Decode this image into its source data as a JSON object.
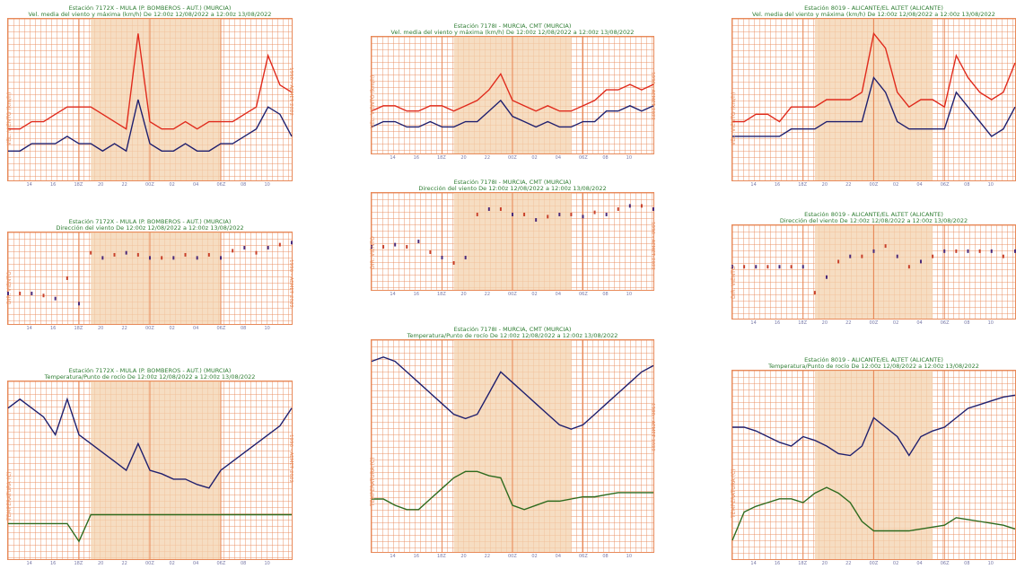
{
  "colors": {
    "grid": "#e88a5a",
    "shade": "#f3d1ae",
    "title_green": "#2e7d32",
    "mean_navy": "#1f1f6e",
    "gust_red": "#e02a1c",
    "dew_green": "#2e6b1e",
    "dir_purple": "#4a2a7a",
    "dir_red": "#c8402a"
  },
  "stations": [
    {
      "wind_title": [
        "Estación 7172X - MULA (P. BOMBEROS - AUT.) (MURCIA)",
        "Vel. media del viento y máxima (km/h)  De 12:00z 12/08/2022 a 12:00z 13/08/2022"
      ],
      "wind_ylabel": "VEL. VIENTO (km/h)",
      "wind_right": "1996 - AEMET 2022",
      "dir_title": [
        "Estación 7172X - MULA (P. BOMBEROS - AUT.) (MURCIA)",
        "Dirección del viento  De 12:00z 12/08/2022 a 12:00z 13/08/2022"
      ],
      "dir_ylabel": "DIR. VIENTO",
      "dir_right": "1996 - AEMET 2022",
      "temp_title": [
        "Estación 7172X - MULA (P. BOMBEROS - AUT.) (MURCIA)",
        "Temperatura/Punto de rocío  De 12:00z 12/08/2022 a 12:00z 13/08/2022"
      ],
      "temp_ylabel": "TEMPERATURA (C)",
      "temp_right": "1996 - AEMET 2022",
      "xticks": [
        "14",
        "16",
        "18Z",
        "20",
        "22",
        "00Z",
        "02",
        "04",
        "06Z",
        "08",
        "10"
      ]
    },
    {
      "wind_title": [
        "Estación 7178I - MURCIA, CMT (MURCIA)",
        "Vel. media del viento y máxima (km/h)  De 12:00z 12/08/2022 a 12:00z 13/08/2022"
      ],
      "wind_ylabel": "VEL. VIENTO (km/h)",
      "wind_right": "1996 - AEMET 2022",
      "dir_title": [
        "Estación 7178I - MURCIA, CMT (MURCIA)",
        "Dirección del viento  De 12:00z 12/08/2022 a 12:00z 13/08/2022"
      ],
      "dir_ylabel": "DIR. VIENTO",
      "dir_right": "1996 - AEMET 2022",
      "temp_title": [
        "Estación 7178I - MURCIA, CMT (MURCIA)",
        "Temperatura/Punto de rocío  De 12:00z 12/08/2022 a 12:00z 13/08/2022"
      ],
      "temp_ylabel": "TEMPERATURA (C)",
      "temp_right": "1996 - AEMET 2022",
      "xticks": [
        "14",
        "16",
        "18Z",
        "20",
        "22",
        "00Z",
        "02",
        "04",
        "06Z",
        "08",
        "10"
      ]
    },
    {
      "wind_title": [
        "Estación 8019 - ALICANTE/EL ALTET (ALICANTE)",
        "Vel. media del viento y máxima (km/h)  De 12:00z 12/08/2022 a 12:00z 13/08/2022"
      ],
      "wind_ylabel": "VEL. VIENTO (km/h)",
      "wind_right": "",
      "dir_title": [
        "Estación 8019 - ALICANTE/EL ALTET (ALICANTE)",
        "Dirección del viento  De 12:00z 12/08/2022 a 12:00z 13/08/2022"
      ],
      "dir_ylabel": "DIR. VIENTO",
      "dir_right": "",
      "temp_title": [
        "Estación 8019 - ALICANTE/EL ALTET (ALICANTE)",
        "Temperatura/Punto de rocío  De 12:00z 12/08/2022 a 12:00z 13/08/2022"
      ],
      "temp_ylabel": "TEMPERATURA (C)",
      "temp_right": "",
      "xticks": [
        "14",
        "16",
        "18Z",
        "20",
        "22",
        "00Z",
        "02",
        "04",
        "06Z",
        "08",
        "10"
      ]
    }
  ],
  "chart_data": [
    {
      "type": "line",
      "station": "7172X",
      "variable": "wind",
      "x_hours": [
        0,
        1,
        2,
        3,
        4,
        5,
        6,
        7,
        8,
        9,
        10,
        11,
        12,
        13,
        14,
        15,
        16,
        17,
        18,
        19,
        20,
        21,
        22,
        23,
        24
      ],
      "shade_hours": [
        7,
        18
      ],
      "series": [
        {
          "role": "gust",
          "values": [
            3.5,
            3.5,
            4,
            4,
            4.5,
            5,
            5,
            5,
            4.5,
            4,
            3.5,
            10,
            4,
            3.5,
            3.5,
            4,
            3.5,
            4,
            4,
            4,
            4.5,
            5,
            8.5,
            6.5,
            6
          ]
        },
        {
          "role": "mean",
          "values": [
            2,
            2,
            2.5,
            2.5,
            2.5,
            3,
            2.5,
            2.5,
            2,
            2.5,
            2,
            5.5,
            2.5,
            2,
            2,
            2.5,
            2,
            2,
            2.5,
            2.5,
            3,
            3.5,
            5,
            4.5,
            3
          ]
        }
      ]
    },
    {
      "type": "scatter",
      "station": "7172X",
      "variable": "direction",
      "x_hours": [
        0,
        1,
        2,
        3,
        4,
        5,
        6,
        7,
        8,
        9,
        10,
        11,
        12,
        13,
        14,
        15,
        16,
        17,
        18,
        19,
        20,
        21,
        22,
        23,
        24
      ],
      "shade_hours": [
        7,
        18
      ],
      "series": [
        {
          "role": "direction",
          "values": [
            3,
            3,
            3,
            2.8,
            2.5,
            4.5,
            2,
            7,
            6.5,
            6.8,
            7,
            6.8,
            6.5,
            6.5,
            6.5,
            6.8,
            6.5,
            6.8,
            6.5,
            7.2,
            7.5,
            7,
            7.5,
            7.8,
            8
          ]
        }
      ]
    },
    {
      "type": "line",
      "station": "7172X",
      "variable": "temperature",
      "x_hours": [
        0,
        1,
        2,
        3,
        4,
        5,
        6,
        7,
        8,
        9,
        10,
        11,
        12,
        13,
        14,
        15,
        16,
        17,
        18,
        19,
        20,
        21,
        22,
        23,
        24
      ],
      "shade_hours": [
        7,
        18
      ],
      "series": [
        {
          "role": "temperature",
          "values": [
            8.5,
            9,
            8.5,
            8,
            7,
            9,
            7,
            6.5,
            6,
            5.5,
            5,
            6.5,
            5,
            4.8,
            4.5,
            4.5,
            4.2,
            4,
            5,
            5.5,
            6,
            6.5,
            7,
            7.5,
            8.5
          ]
        },
        {
          "role": "dewpoint",
          "values": [
            2,
            2,
            2,
            2,
            2,
            2,
            1,
            2.5,
            2.5,
            2.5,
            2.5,
            2.5,
            2.5,
            2.5,
            2.5,
            2.5,
            2.5,
            2.5,
            2.5,
            2.5,
            2.5,
            2.5,
            2.5,
            2.5,
            2.5
          ]
        }
      ]
    },
    {
      "type": "line",
      "station": "7178I",
      "variable": "wind",
      "x_hours": [
        0,
        1,
        2,
        3,
        4,
        5,
        6,
        7,
        8,
        9,
        10,
        11,
        12,
        13,
        14,
        15,
        16,
        17,
        18,
        19,
        20,
        21,
        22,
        23,
        24
      ],
      "shade_hours": [
        7,
        17
      ],
      "series": [
        {
          "role": "gust",
          "values": [
            4,
            4.5,
            4.5,
            4,
            4,
            4.5,
            4.5,
            4,
            4.5,
            5,
            6,
            7.5,
            5,
            4.5,
            4,
            4.5,
            4,
            4,
            4.5,
            5,
            6,
            6,
            6.5,
            6,
            6.5
          ]
        },
        {
          "role": "mean",
          "values": [
            2.5,
            3,
            3,
            2.5,
            2.5,
            3,
            2.5,
            2.5,
            3,
            3,
            4,
            5,
            3.5,
            3,
            2.5,
            3,
            2.5,
            2.5,
            3,
            3,
            4,
            4,
            4.5,
            4,
            4.5
          ]
        }
      ]
    },
    {
      "type": "scatter",
      "station": "7178I",
      "variable": "direction",
      "x_hours": [
        0,
        1,
        2,
        3,
        4,
        5,
        6,
        7,
        8,
        9,
        10,
        11,
        12,
        13,
        14,
        15,
        16,
        17,
        18,
        19,
        20,
        21,
        22,
        23,
        24
      ],
      "shade_hours": [
        7,
        17
      ],
      "series": [
        {
          "role": "direction",
          "values": [
            4,
            4,
            4.2,
            4,
            4.5,
            3.5,
            3,
            2.5,
            3,
            7,
            7.5,
            7.5,
            7,
            7,
            6.5,
            6.8,
            7,
            7,
            6.8,
            7.2,
            7,
            7.5,
            7.8,
            7.8,
            7.5
          ]
        }
      ]
    },
    {
      "type": "line",
      "station": "7178I",
      "variable": "temperature",
      "x_hours": [
        0,
        1,
        2,
        3,
        4,
        5,
        6,
        7,
        8,
        9,
        10,
        11,
        12,
        13,
        14,
        15,
        16,
        17,
        18,
        19,
        20,
        21,
        22,
        23,
        24
      ],
      "shade_hours": [
        7,
        17
      ],
      "series": [
        {
          "role": "temperature",
          "values": [
            9,
            9.2,
            9,
            8.5,
            8,
            7.5,
            7,
            6.5,
            6.3,
            6.5,
            7.5,
            8.5,
            8,
            7.5,
            7,
            6.5,
            6,
            5.8,
            6,
            6.5,
            7,
            7.5,
            8,
            8.5,
            8.8
          ]
        },
        {
          "role": "dewpoint",
          "values": [
            2.5,
            2.5,
            2.2,
            2,
            2,
            2.5,
            3,
            3.5,
            3.8,
            3.8,
            3.6,
            3.5,
            2.2,
            2,
            2.2,
            2.4,
            2.4,
            2.5,
            2.6,
            2.6,
            2.7,
            2.8,
            2.8,
            2.8,
            2.8
          ]
        }
      ]
    },
    {
      "type": "line",
      "station": "8019",
      "variable": "wind",
      "x_hours": [
        0,
        1,
        2,
        3,
        4,
        5,
        6,
        7,
        8,
        9,
        10,
        11,
        12,
        13,
        14,
        15,
        16,
        17,
        18,
        19,
        20,
        21,
        22,
        23,
        24
      ],
      "shade_hours": [
        7,
        17
      ],
      "series": [
        {
          "role": "gust",
          "values": [
            4,
            4,
            4.5,
            4.5,
            4,
            5,
            5,
            5,
            5.5,
            5.5,
            5.5,
            6,
            10,
            9,
            6,
            5,
            5.5,
            5.5,
            5,
            8.5,
            7,
            6,
            5.5,
            6,
            8
          ]
        },
        {
          "role": "mean",
          "values": [
            3,
            3,
            3,
            3,
            3,
            3.5,
            3.5,
            3.5,
            4,
            4,
            4,
            4,
            7,
            6,
            4,
            3.5,
            3.5,
            3.5,
            3.5,
            6,
            5,
            4,
            3,
            3.5,
            5
          ]
        }
      ]
    },
    {
      "type": "scatter",
      "station": "8019",
      "variable": "direction",
      "x_hours": [
        0,
        1,
        2,
        3,
        4,
        5,
        6,
        7,
        8,
        9,
        10,
        11,
        12,
        13,
        14,
        15,
        16,
        17,
        18,
        19,
        20,
        21,
        22,
        23,
        24
      ],
      "shade_hours": [
        7,
        17
      ],
      "series": [
        {
          "role": "direction",
          "values": [
            5,
            5,
            5,
            5,
            5,
            5,
            5,
            2.5,
            4,
            5.5,
            6,
            6,
            6.5,
            7,
            6,
            5,
            5.5,
            6,
            6.5,
            6.5,
            6.5,
            6.5,
            6.5,
            6,
            6.5
          ]
        }
      ]
    },
    {
      "type": "line",
      "station": "8019",
      "variable": "temperature",
      "x_hours": [
        0,
        1,
        2,
        3,
        4,
        5,
        6,
        7,
        8,
        9,
        10,
        11,
        12,
        13,
        14,
        15,
        16,
        17,
        18,
        19,
        20,
        21,
        22,
        23,
        24
      ],
      "shade_hours": [
        7,
        17
      ],
      "series": [
        {
          "role": "temperature",
          "values": [
            7,
            7,
            6.8,
            6.5,
            6.2,
            6,
            6.5,
            6.3,
            6,
            5.6,
            5.5,
            6,
            7.5,
            7,
            6.5,
            5.5,
            6.5,
            6.8,
            7,
            7.5,
            8,
            8.2,
            8.4,
            8.6,
            8.7
          ]
        },
        {
          "role": "dewpoint",
          "values": [
            1,
            2.5,
            2.8,
            3,
            3.2,
            3.2,
            3,
            3.5,
            3.8,
            3.5,
            3,
            2,
            1.5,
            1.5,
            1.5,
            1.5,
            1.6,
            1.7,
            1.8,
            2.2,
            2.1,
            2,
            1.9,
            1.8,
            1.6
          ]
        }
      ]
    }
  ]
}
